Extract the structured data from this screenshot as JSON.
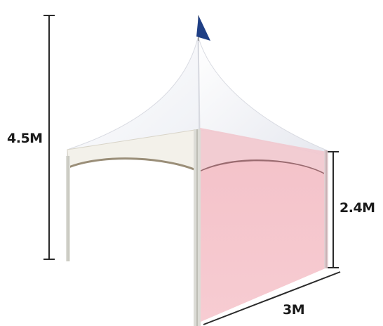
{
  "dimensions": {
    "total_height": "4.5M",
    "wall_height": "2.4M",
    "width": "3M"
  },
  "colors": {
    "canopy": "#fbfbfd",
    "canopy_shadow": "#e9ebf1",
    "valance": "#f3f1ea",
    "side_wall": "#f5c6cc",
    "side_wall_roof": "#f1c9d0",
    "frame": "#dcdcd6",
    "flag": "#1f3f85",
    "dimension_line": "#2a2a2a"
  },
  "icons": {
    "flag": "flag-icon"
  }
}
